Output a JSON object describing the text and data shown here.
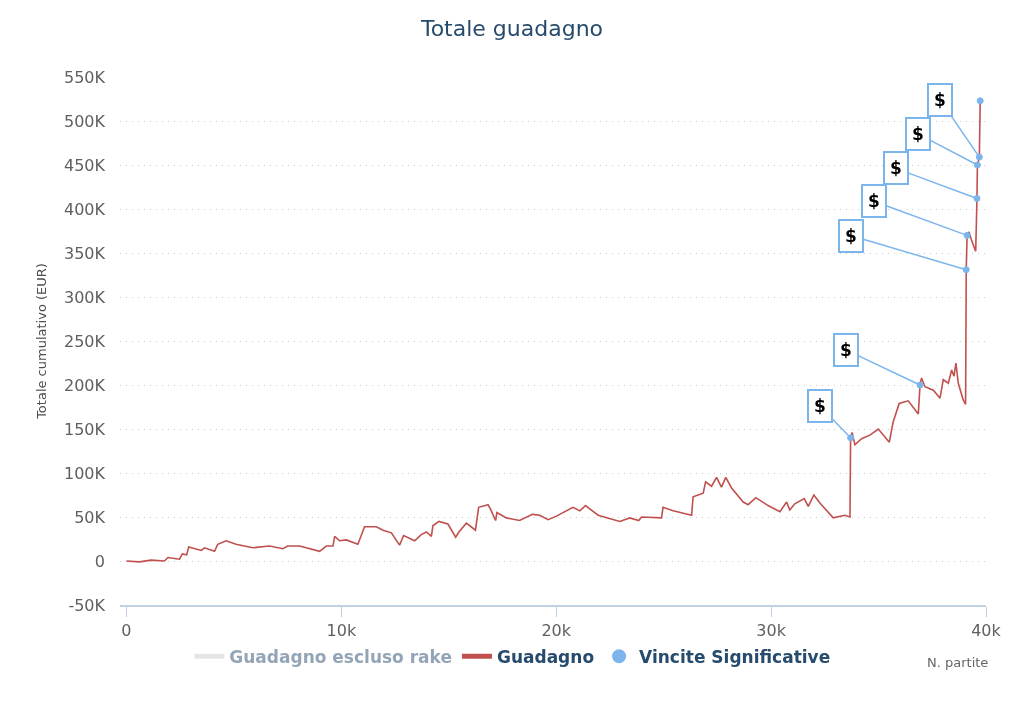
{
  "chart_data": {
    "type": "line",
    "title": "Totale guadagno",
    "xlabel": "N. partite",
    "ylabel": "Totale cumulativo (EUR)",
    "xlim": [
      -300,
      40000
    ],
    "ylim": [
      -50000,
      550000
    ],
    "xticks": [
      0,
      {
        "value": 10000,
        "label": "10k"
      },
      {
        "value": 20000,
        "label": "20k"
      },
      {
        "value": 30000,
        "label": "30k"
      },
      {
        "value": 40000,
        "label": "40k"
      }
    ],
    "yticks": [
      {
        "value": -50000,
        "label": "-50K"
      },
      0,
      {
        "value": 50000,
        "label": "50K"
      },
      {
        "value": 100000,
        "label": "100K"
      },
      {
        "value": 150000,
        "label": "150K"
      },
      {
        "value": 200000,
        "label": "200K"
      },
      {
        "value": 250000,
        "label": "250K"
      },
      {
        "value": 300000,
        "label": "300K"
      },
      {
        "value": 350000,
        "label": "350K"
      },
      {
        "value": 400000,
        "label": "400K"
      },
      {
        "value": 450000,
        "label": "450K"
      },
      {
        "value": 500000,
        "label": "500K"
      },
      {
        "value": 550000,
        "label": "550K"
      }
    ],
    "grid": "y",
    "legend": "bottom",
    "line_style": "solid",
    "series": [
      {
        "name": "Guadagno escluso rake",
        "color": "#cccccc"
      },
      {
        "name": "Guadagno",
        "color": "#c0504d",
        "x": [
          0,
          600,
          1150,
          1770,
          1930,
          2470,
          2600,
          2800,
          2900,
          3480,
          3630,
          4100,
          4250,
          4640,
          5100,
          5880,
          6660,
          7280,
          7510,
          8060,
          8990,
          9300,
          9610,
          9690,
          9920,
          10230,
          10770,
          11080,
          11630,
          11940,
          12330,
          12710,
          12900,
          13410,
          13720,
          13960,
          14190,
          14260,
          14540,
          14960,
          15320,
          15470,
          15820,
          16240,
          16390,
          16830,
          16940,
          17180,
          17240,
          17680,
          18300,
          18890,
          19230,
          19620,
          20010,
          20780,
          21100,
          21360,
          21950,
          22960,
          23420,
          23840,
          23970,
          24900,
          24970,
          25440,
          26300,
          26370,
          26840,
          26950,
          27230,
          27460,
          27690,
          27890,
          28160,
          28700,
          28930,
          29290,
          29860,
          30410,
          30720,
          30870,
          31100,
          31540,
          31730,
          31990,
          32270,
          32890,
          33430,
          33670,
          33700,
          33770,
          33900,
          34210,
          34600,
          34990,
          35500,
          35680,
          35960,
          36380,
          36850,
          36930,
          37000,
          37160,
          37550,
          37860,
          38010,
          38250,
          38400,
          38510,
          38600,
          38710,
          38940,
          39050,
          39080,
          39120,
          39210,
          39320,
          39440,
          39520,
          39580,
          39600,
          39690,
          39730
        ],
        "values": [
          0,
          -1000,
          1000,
          0,
          4000,
          2000,
          8000,
          7000,
          16000,
          12000,
          15000,
          11000,
          19000,
          23000,
          19000,
          15000,
          17000,
          14000,
          17000,
          17000,
          11000,
          17000,
          17000,
          28000,
          23000,
          24000,
          19000,
          39000,
          39000,
          35000,
          32000,
          18000,
          29000,
          23000,
          30000,
          33000,
          28000,
          40000,
          45000,
          42000,
          27000,
          33000,
          43000,
          35000,
          61000,
          64000,
          59000,
          46000,
          55000,
          49000,
          46000,
          53000,
          52000,
          47000,
          51000,
          61000,
          57000,
          63000,
          52000,
          45000,
          49000,
          46000,
          50000,
          49000,
          61000,
          57000,
          52000,
          73000,
          77000,
          90000,
          85000,
          95000,
          84000,
          95000,
          83000,
          67000,
          64000,
          72000,
          63000,
          56000,
          67000,
          58000,
          65000,
          71000,
          62000,
          75000,
          66000,
          49000,
          52000,
          50000,
          140000,
          146000,
          132000,
          139000,
          143000,
          150000,
          135000,
          158000,
          179000,
          182000,
          167000,
          200000,
          208000,
          198000,
          194000,
          185000,
          206000,
          202000,
          217000,
          210000,
          225000,
          202000,
          183000,
          178000,
          331000,
          370000,
          374000,
          365000,
          357000,
          352000,
          412000,
          450000,
          459000,
          523000
        ]
      },
      {
        "name": "Vincite Significative",
        "color": "#7cb5ec",
        "type": "scatter",
        "x": [
          33700,
          36930,
          39080,
          39120,
          39580,
          39600,
          39690,
          39730
        ],
        "values": [
          140000,
          200000,
          331000,
          370000,
          412000,
          450000,
          459000,
          523000
        ]
      }
    ],
    "annotations": [
      {
        "text": "$",
        "x": 33700,
        "y": 140000
      },
      {
        "text": "$",
        "x": 36930,
        "y": 200000
      },
      {
        "text": "$",
        "x": 39080,
        "y": 331000
      },
      {
        "text": "$",
        "x": 39120,
        "y": 370000
      },
      {
        "text": "$",
        "x": 39580,
        "y": 412000
      },
      {
        "text": "$",
        "x": 39600,
        "y": 450000
      },
      {
        "text": "$",
        "x": 39690,
        "y": 459000
      }
    ]
  }
}
